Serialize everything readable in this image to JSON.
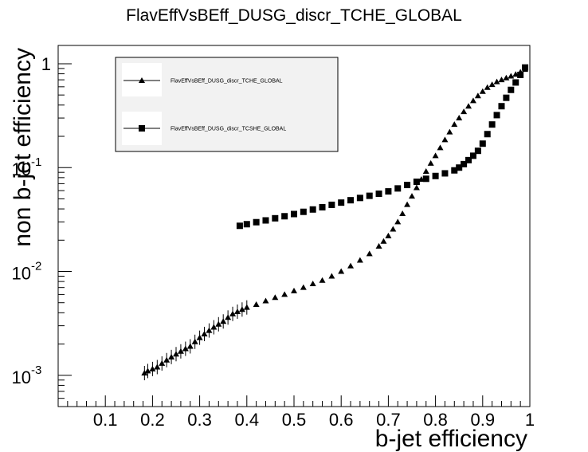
{
  "chart_data": {
    "type": "scatter",
    "title": "FlavEffVsBEff_DUSG_discr_TCHE_GLOBAL",
    "xlabel": "b-jet efficiency",
    "ylabel": "non b-jet efficiency",
    "xlim": [
      0.0,
      1.0
    ],
    "ylim": [
      0.0005,
      1.5
    ],
    "y_scale": "log",
    "grid": false,
    "legend_position": "top-left",
    "x_ticks": [
      {
        "value": 0.1,
        "label": "0.1"
      },
      {
        "value": 0.2,
        "label": "0.2"
      },
      {
        "value": 0.3,
        "label": "0.3"
      },
      {
        "value": 0.4,
        "label": "0.4"
      },
      {
        "value": 0.5,
        "label": "0.5"
      },
      {
        "value": 0.6,
        "label": "0.6"
      },
      {
        "value": 0.7,
        "label": "0.7"
      },
      {
        "value": 0.8,
        "label": "0.8"
      },
      {
        "value": 0.9,
        "label": "0.9"
      },
      {
        "value": 1.0,
        "label": "1"
      }
    ],
    "y_ticks": [
      {
        "value": 0.001,
        "base": "10",
        "exp": "-3"
      },
      {
        "value": 0.01,
        "base": "10",
        "exp": "-2"
      },
      {
        "value": 0.1,
        "base": "10",
        "exp": "-1"
      },
      {
        "value": 1,
        "base": "1",
        "exp": ""
      }
    ],
    "series": [
      {
        "name": "FlavEffVsBEff_DUSG_discr_TCHE_GLOBAL",
        "marker": "triangle",
        "x": [
          0.183,
          0.19,
          0.2,
          0.21,
          0.22,
          0.23,
          0.24,
          0.25,
          0.26,
          0.27,
          0.28,
          0.29,
          0.3,
          0.31,
          0.32,
          0.33,
          0.34,
          0.35,
          0.36,
          0.37,
          0.38,
          0.39,
          0.4,
          0.42,
          0.44,
          0.46,
          0.48,
          0.5,
          0.52,
          0.54,
          0.56,
          0.58,
          0.6,
          0.62,
          0.64,
          0.66,
          0.68,
          0.69,
          0.7,
          0.71,
          0.72,
          0.73,
          0.74,
          0.75,
          0.76,
          0.77,
          0.78,
          0.79,
          0.8,
          0.81,
          0.82,
          0.83,
          0.84,
          0.85,
          0.86,
          0.87,
          0.88,
          0.89,
          0.9,
          0.91,
          0.92,
          0.93,
          0.94,
          0.95,
          0.96,
          0.97,
          0.98,
          0.99
        ],
        "y": [
          0.00105,
          0.0011,
          0.00115,
          0.0012,
          0.0013,
          0.0014,
          0.0015,
          0.0016,
          0.0017,
          0.0018,
          0.0019,
          0.0021,
          0.0023,
          0.0025,
          0.0027,
          0.0029,
          0.0031,
          0.0033,
          0.0036,
          0.0039,
          0.0041,
          0.0043,
          0.0045,
          0.0048,
          0.0052,
          0.0056,
          0.006,
          0.0065,
          0.007,
          0.0076,
          0.0082,
          0.009,
          0.01,
          0.0113,
          0.0128,
          0.0148,
          0.0175,
          0.0195,
          0.022,
          0.0255,
          0.03,
          0.036,
          0.044,
          0.053,
          0.064,
          0.077,
          0.092,
          0.11,
          0.13,
          0.155,
          0.185,
          0.22,
          0.26,
          0.3,
          0.345,
          0.39,
          0.44,
          0.49,
          0.54,
          0.59,
          0.63,
          0.67,
          0.7,
          0.73,
          0.76,
          0.79,
          0.83,
          0.88
        ]
      },
      {
        "name": "FlavEffVsBEff_DUSG_discr_TCSHE_GLOBAL",
        "marker": "square",
        "x": [
          0.385,
          0.4,
          0.42,
          0.44,
          0.46,
          0.48,
          0.5,
          0.52,
          0.54,
          0.56,
          0.58,
          0.6,
          0.62,
          0.64,
          0.66,
          0.68,
          0.7,
          0.72,
          0.74,
          0.76,
          0.78,
          0.8,
          0.82,
          0.84,
          0.85,
          0.86,
          0.87,
          0.88,
          0.89,
          0.9,
          0.91,
          0.92,
          0.93,
          0.94,
          0.95,
          0.96,
          0.97,
          0.98,
          0.99
        ],
        "y": [
          0.0275,
          0.0285,
          0.0298,
          0.031,
          0.0325,
          0.034,
          0.0357,
          0.0375,
          0.0395,
          0.0415,
          0.0438,
          0.046,
          0.0485,
          0.051,
          0.0535,
          0.056,
          0.059,
          0.063,
          0.068,
          0.073,
          0.078,
          0.083,
          0.088,
          0.094,
          0.1,
          0.108,
          0.118,
          0.13,
          0.145,
          0.17,
          0.21,
          0.26,
          0.32,
          0.39,
          0.47,
          0.56,
          0.66,
          0.78,
          0.92
        ]
      }
    ]
  }
}
